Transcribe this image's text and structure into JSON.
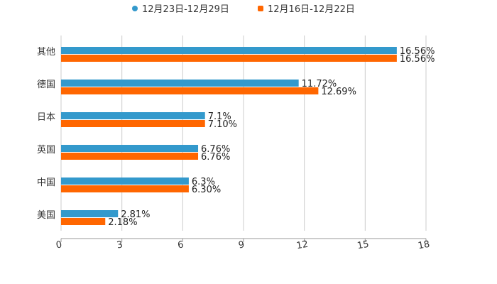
{
  "chart_data": {
    "type": "bar",
    "orientation": "horizontal",
    "title": "",
    "xlabel": "",
    "ylabel": "",
    "categories": [
      "其他",
      "德国",
      "日本",
      "英国",
      "中国",
      "美国"
    ],
    "series": [
      {
        "name": "12月23日-12月29日",
        "color": "#3399cc",
        "values": [
          16.56,
          11.72,
          7.1,
          6.76,
          6.3,
          2.81
        ],
        "labels": [
          "16.56%",
          "11.72%",
          "7.1%",
          "6.76%",
          "6.3%",
          "2.81%"
        ]
      },
      {
        "name": "12月16日-12月22日",
        "color": "#ff6600",
        "values": [
          16.56,
          12.69,
          7.1,
          6.76,
          6.3,
          2.18
        ],
        "labels": [
          "16.56%",
          "12.69%",
          "7.10%",
          "6.76%",
          "6.30%",
          "2.18%"
        ]
      }
    ],
    "xlim": [
      0,
      18
    ],
    "xticks": [
      "0",
      "3",
      "6",
      "9",
      "12",
      "15",
      "18"
    ],
    "grid": true,
    "legend": "top-center"
  }
}
